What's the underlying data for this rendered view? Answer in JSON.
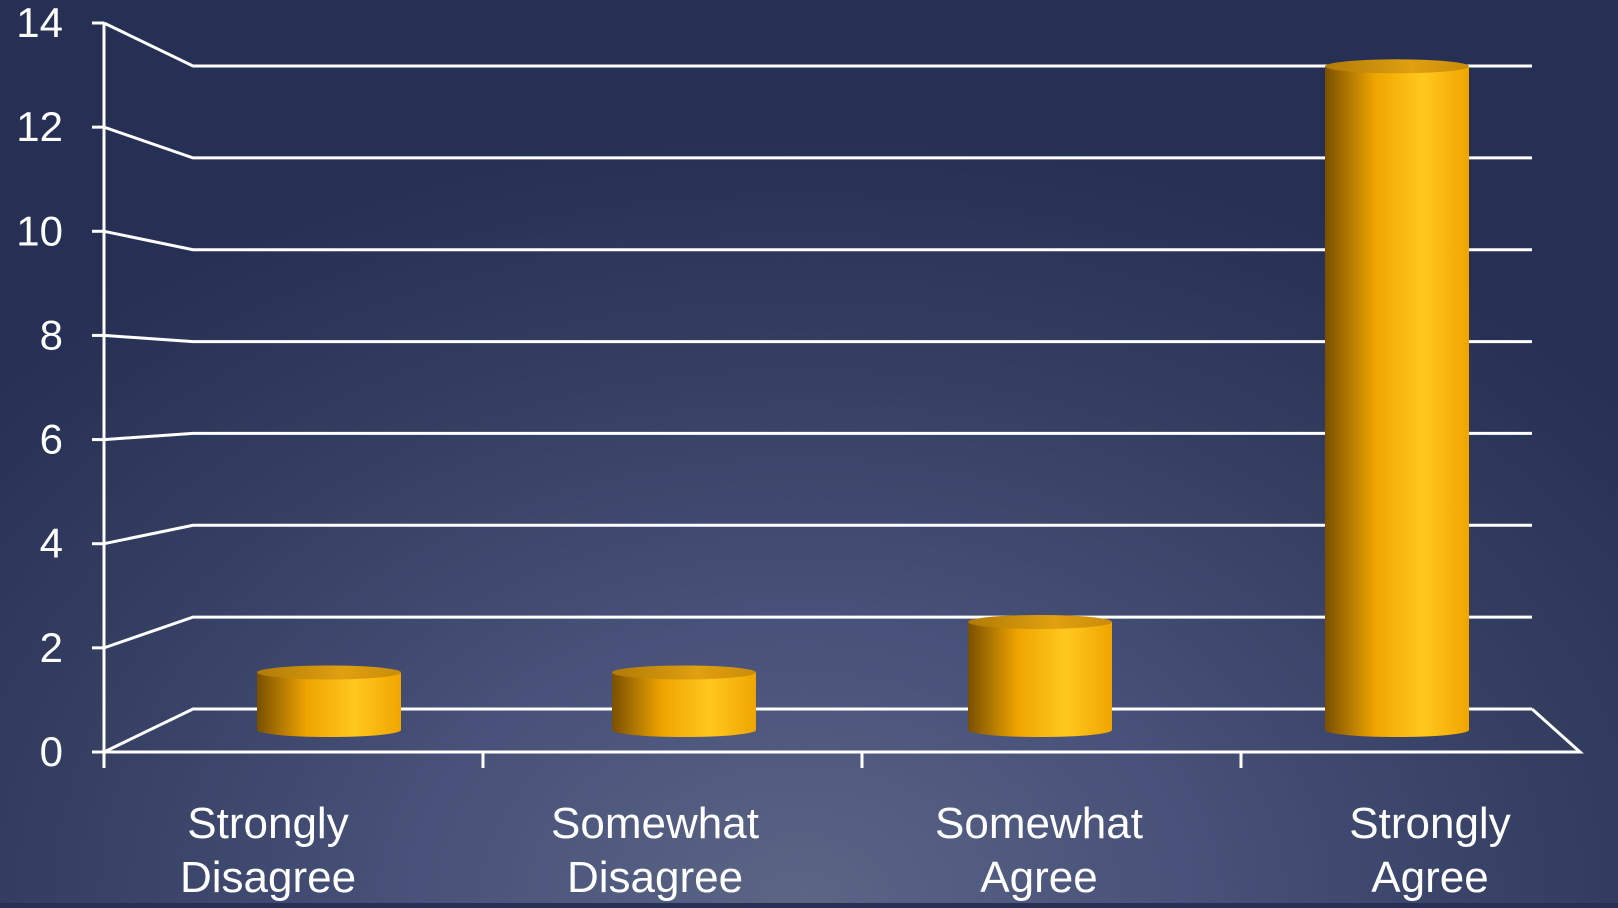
{
  "chart_data": {
    "type": "bar",
    "style": "3d-cylinder",
    "categories": [
      "Strongly Disagree",
      "Somewhat Disagree",
      "Somewhat Agree",
      "Strongly Agree"
    ],
    "category_lines": [
      [
        "Strongly",
        "Disagree"
      ],
      [
        "Somewhat",
        "Disagree"
      ],
      [
        "Somewhat",
        "Agree"
      ],
      [
        "Strongly",
        "Agree"
      ]
    ],
    "values": [
      1,
      1,
      2,
      13
    ],
    "yticks": [
      0,
      2,
      4,
      6,
      8,
      10,
      12,
      14
    ],
    "ylim": [
      0,
      14
    ],
    "grid": true,
    "legend": "none",
    "title": "",
    "xlabel": "",
    "ylabel": "",
    "colors": {
      "bar_light": "#ffc81e",
      "bar_mid": "#f0a500",
      "bar_dark": "#7a5000",
      "bar_top": "#e0a010",
      "axis": "#ffffff",
      "text": "#ffffff"
    }
  }
}
